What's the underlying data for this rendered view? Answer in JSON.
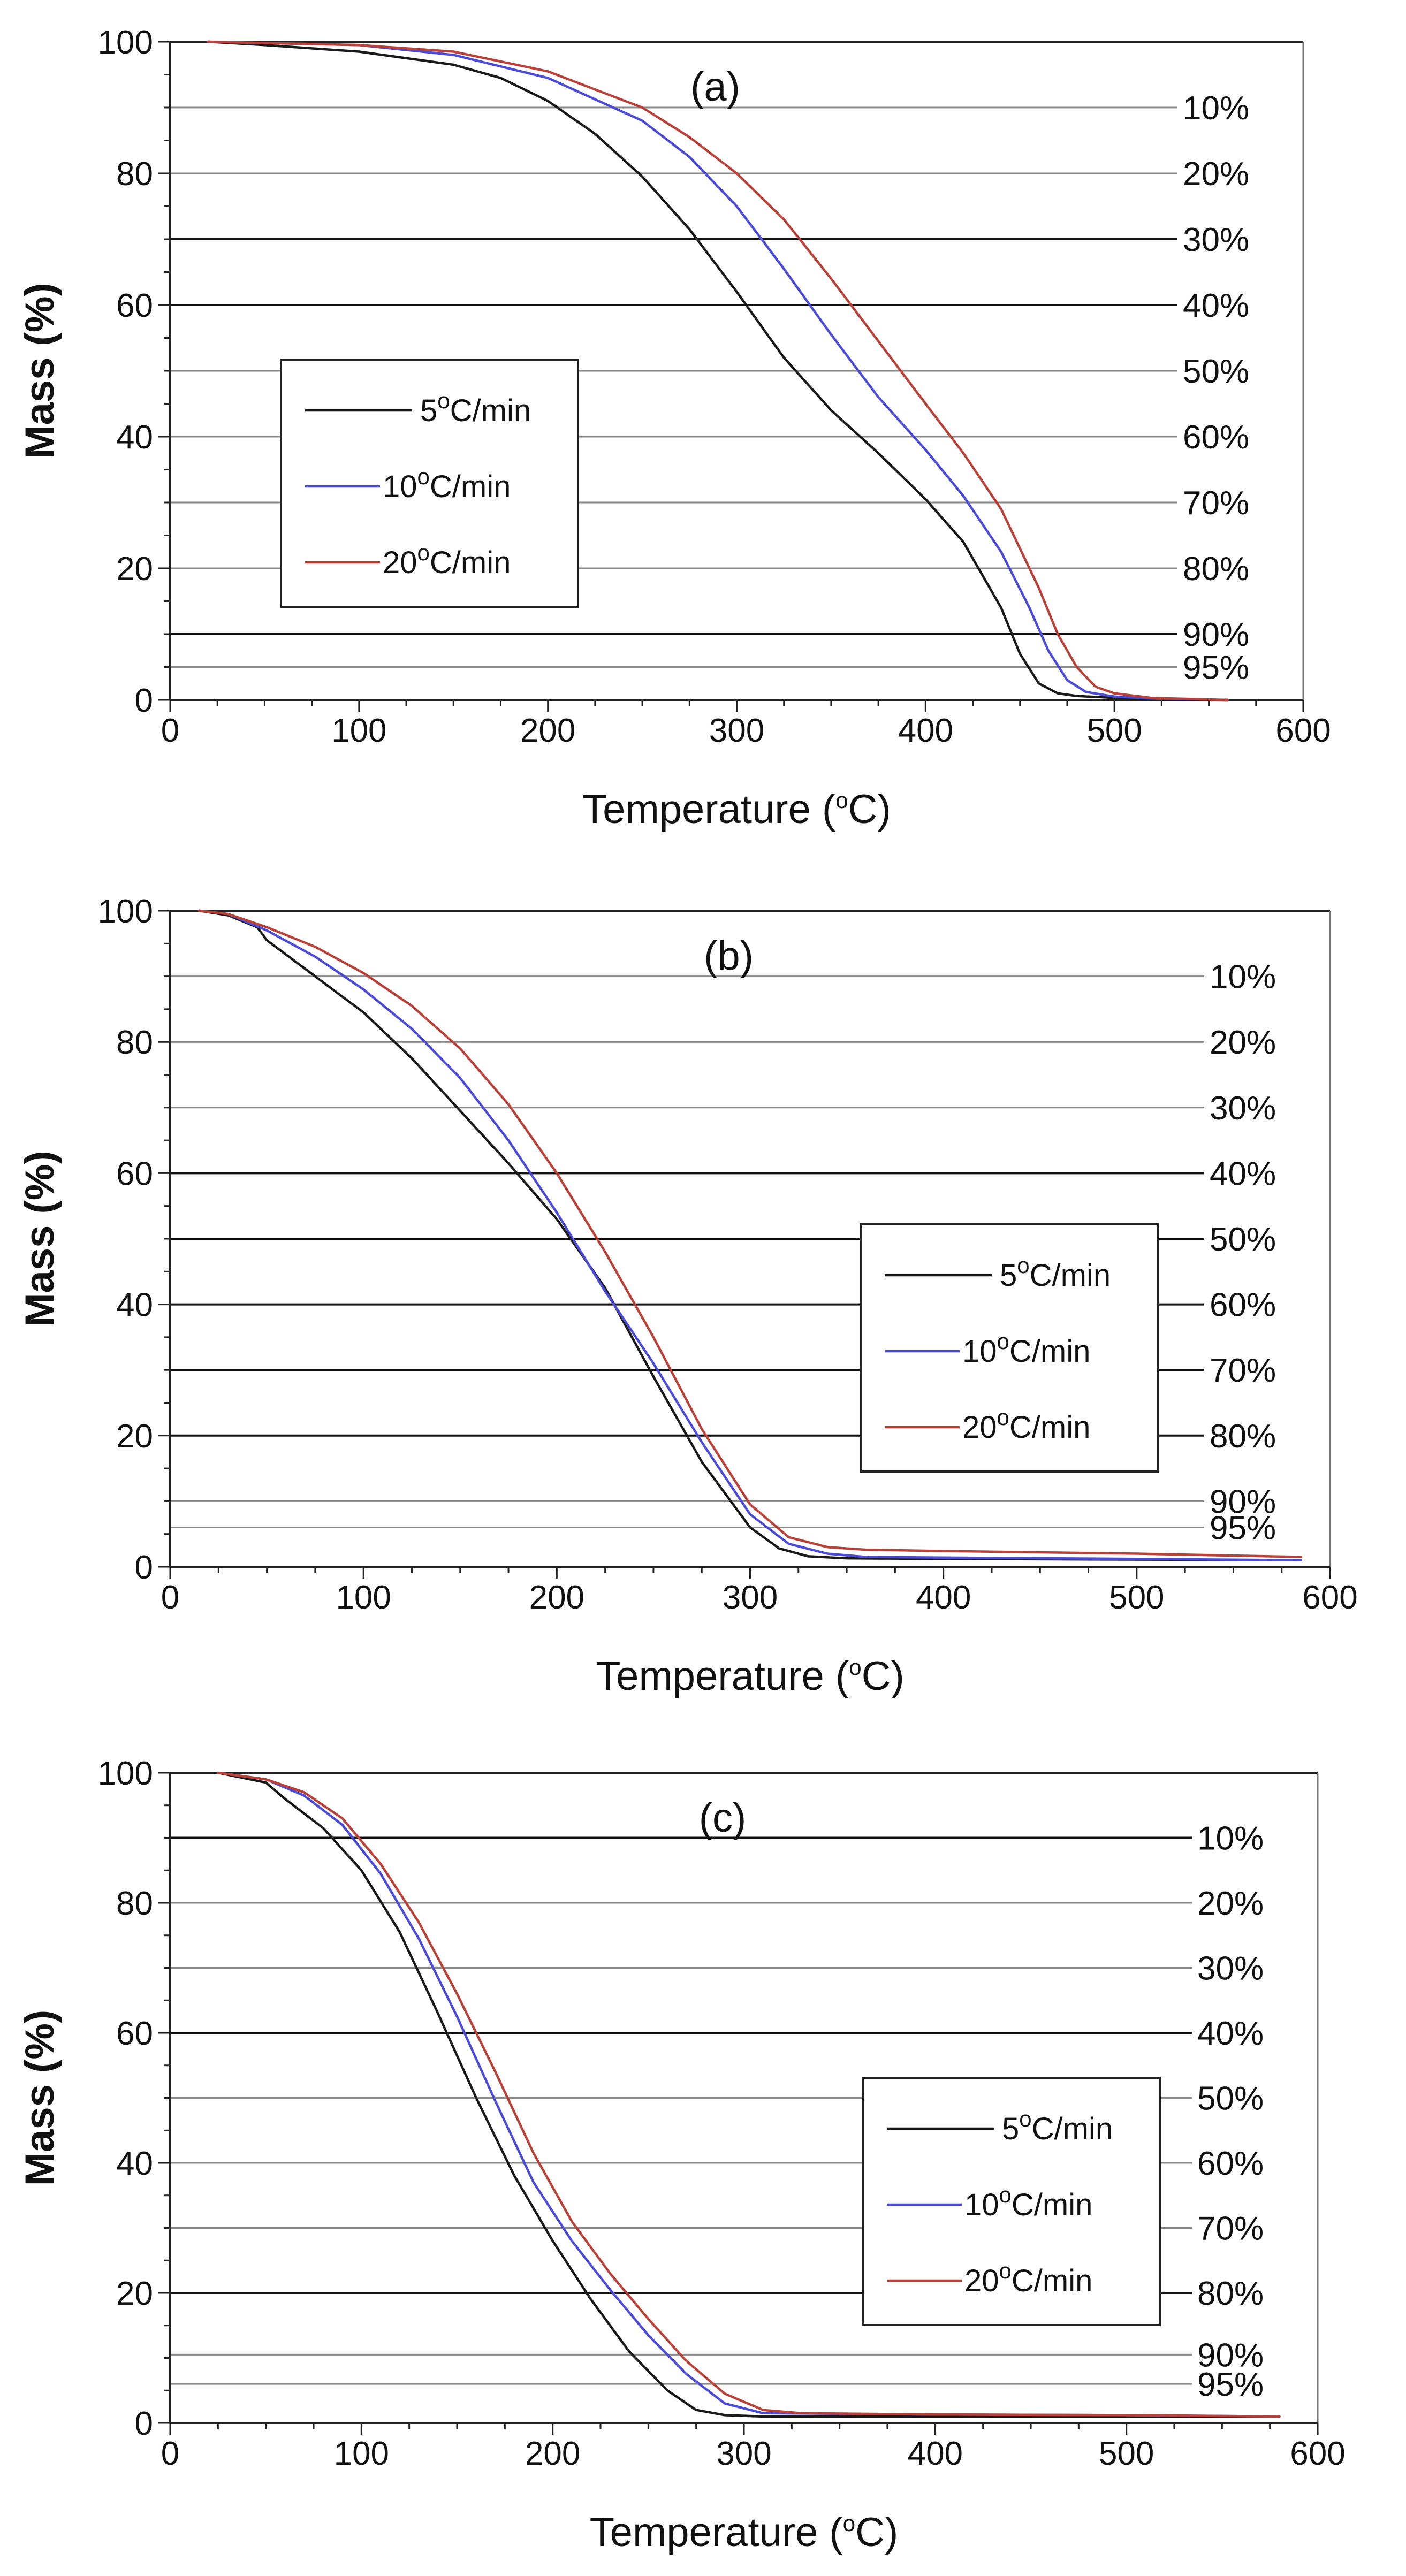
{
  "colors": {
    "series_5": "#1a1a1a",
    "series_10": "#4b4bd6",
    "series_20": "#b8423a",
    "frame": "#222222",
    "grid_light": "#8a8a8a",
    "grid_dark": "#111111"
  },
  "chart_data": [
    {
      "type": "line",
      "title": "(a)",
      "xlabel": "Temperature (oC)",
      "xlabel_main": "Temperature (",
      "xlabel_sup": "o",
      "xlabel_end": "C)",
      "ylabel": "Mass (%)",
      "xlim": [
        0,
        600
      ],
      "ylim": [
        0,
        100
      ],
      "xticks": [
        0,
        100,
        200,
        300,
        400,
        500,
        600
      ],
      "yticks": [
        0,
        20,
        40,
        60,
        80,
        100
      ],
      "legend_position": "center-left",
      "reference_lines": [
        {
          "y": 90,
          "label": "10%",
          "dark": false
        },
        {
          "y": 80,
          "label": "20%",
          "dark": false
        },
        {
          "y": 70,
          "label": "30%",
          "dark": true
        },
        {
          "y": 60,
          "label": "40%",
          "dark": true
        },
        {
          "y": 50,
          "label": "50%",
          "dark": false
        },
        {
          "y": 40,
          "label": "60%",
          "dark": false
        },
        {
          "y": 30,
          "label": "70%",
          "dark": false
        },
        {
          "y": 20,
          "label": "80%",
          "dark": false
        },
        {
          "y": 10,
          "label": "90%",
          "dark": true
        },
        {
          "y": 5,
          "label": "95%",
          "dark": false
        }
      ],
      "series": [
        {
          "name": "5oC/min",
          "name_num": "5",
          "name_sup": "o",
          "name_unit": "C/min",
          "color_key": "series_5",
          "x": [
            20,
            50,
            100,
            150,
            175,
            200,
            225,
            250,
            275,
            300,
            325,
            350,
            375,
            400,
            420,
            440,
            450,
            460,
            470,
            480,
            500,
            520,
            560
          ],
          "y": [
            100,
            99.5,
            98.5,
            96.5,
            94.5,
            91,
            86,
            79.5,
            71.5,
            62,
            52,
            44,
            37.5,
            30.5,
            24,
            14,
            7,
            2.5,
            1,
            0.6,
            0.3,
            0.1,
            0
          ]
        },
        {
          "name": "10oC/min",
          "name_num": "10",
          "name_sup": "o",
          "name_unit": "C/min",
          "color_key": "series_10",
          "x": [
            20,
            50,
            100,
            150,
            200,
            250,
            275,
            300,
            325,
            350,
            375,
            400,
            420,
            440,
            455,
            465,
            475,
            485,
            500,
            520,
            560
          ],
          "y": [
            100,
            99.8,
            99.5,
            98,
            94.5,
            88,
            82.5,
            75,
            65.5,
            55.5,
            46,
            38,
            31,
            22.5,
            14,
            7.5,
            3,
            1.2,
            0.5,
            0.2,
            0
          ]
        },
        {
          "name": "20oC/min",
          "name_num": "20",
          "name_sup": "o",
          "name_unit": "C/min",
          "color_key": "series_20",
          "x": [
            20,
            50,
            100,
            150,
            200,
            250,
            275,
            300,
            325,
            350,
            375,
            400,
            420,
            440,
            460,
            470,
            480,
            490,
            500,
            520,
            560
          ],
          "y": [
            100,
            99.8,
            99.5,
            98.5,
            95.5,
            90,
            85.5,
            80,
            73,
            64,
            54.5,
            45,
            37.5,
            29,
            17,
            10,
            5,
            2,
            1,
            0.3,
            0
          ]
        }
      ]
    },
    {
      "type": "line",
      "title": "(b)",
      "xlabel": "Temperature (oC)",
      "xlabel_main": "Temperature (",
      "xlabel_sup": "o",
      "xlabel_end": "C)",
      "ylabel": "Mass (%)",
      "xlim": [
        0,
        600
      ],
      "ylim": [
        0,
        100
      ],
      "xticks": [
        0,
        100,
        200,
        300,
        400,
        500,
        600
      ],
      "yticks": [
        0,
        20,
        40,
        60,
        80,
        100
      ],
      "legend_position": "center-right",
      "reference_lines": [
        {
          "y": 90,
          "label": "10%",
          "dark": false
        },
        {
          "y": 80,
          "label": "20%",
          "dark": false
        },
        {
          "y": 70,
          "label": "30%",
          "dark": false
        },
        {
          "y": 60,
          "label": "40%",
          "dark": true
        },
        {
          "y": 50,
          "label": "50%",
          "dark": true
        },
        {
          "y": 40,
          "label": "60%",
          "dark": true
        },
        {
          "y": 30,
          "label": "70%",
          "dark": true
        },
        {
          "y": 20,
          "label": "80%",
          "dark": true
        },
        {
          "y": 10,
          "label": "90%",
          "dark": false
        },
        {
          "y": 6,
          "label": "95%",
          "dark": false
        }
      ],
      "series": [
        {
          "name": "5oC/min",
          "name_num": "5",
          "name_sup": "o",
          "name_unit": "C/min",
          "color_key": "series_5",
          "x": [
            15,
            30,
            45,
            50,
            75,
            100,
            125,
            150,
            175,
            200,
            225,
            250,
            275,
            300,
            315,
            330,
            350,
            400,
            500,
            585
          ],
          "y": [
            100,
            99.3,
            97.5,
            95.5,
            90,
            84.5,
            77.5,
            69.5,
            61.5,
            53,
            42.5,
            29,
            16,
            6,
            2.8,
            1.6,
            1.3,
            1.2,
            1.1,
            1
          ]
        },
        {
          "name": "10oC/min",
          "name_num": "10",
          "name_sup": "o",
          "name_unit": "C/min",
          "color_key": "series_10",
          "x": [
            15,
            30,
            50,
            75,
            100,
            125,
            150,
            175,
            200,
            225,
            250,
            275,
            300,
            320,
            340,
            360,
            400,
            500,
            585
          ],
          "y": [
            100,
            99.5,
            97,
            93,
            88,
            82,
            74.5,
            65,
            54,
            42,
            31,
            19,
            8,
            3.5,
            2,
            1.5,
            1.4,
            1.2,
            1
          ]
        },
        {
          "name": "20oC/min",
          "name_num": "20",
          "name_sup": "o",
          "name_unit": "C/min",
          "color_key": "series_20",
          "x": [
            15,
            30,
            50,
            75,
            100,
            125,
            150,
            175,
            200,
            225,
            250,
            275,
            300,
            320,
            340,
            360,
            400,
            500,
            585
          ],
          "y": [
            100,
            99.5,
            97.5,
            94.5,
            90.5,
            85.5,
            79,
            70.5,
            60,
            48,
            35,
            21,
            9.5,
            4.5,
            3,
            2.6,
            2.4,
            2,
            1.5
          ]
        }
      ]
    },
    {
      "type": "line",
      "title": "(c)",
      "xlabel": "Temperature (oC)",
      "xlabel_main": "Temperature (",
      "xlabel_sup": "o",
      "xlabel_end": "C)",
      "ylabel": "Mass (%)",
      "xlim": [
        0,
        600
      ],
      "ylim": [
        0,
        100
      ],
      "xticks": [
        0,
        100,
        200,
        300,
        400,
        500,
        600
      ],
      "yticks": [
        0,
        20,
        40,
        60,
        80,
        100
      ],
      "legend_position": "center-right",
      "reference_lines": [
        {
          "y": 90,
          "label": "10%",
          "dark": true
        },
        {
          "y": 80,
          "label": "20%",
          "dark": false
        },
        {
          "y": 70,
          "label": "30%",
          "dark": false
        },
        {
          "y": 60,
          "label": "40%",
          "dark": true
        },
        {
          "y": 50,
          "label": "50%",
          "dark": false
        },
        {
          "y": 40,
          "label": "60%",
          "dark": false
        },
        {
          "y": 30,
          "label": "70%",
          "dark": false
        },
        {
          "y": 20,
          "label": "80%",
          "dark": true
        },
        {
          "y": 10.5,
          "label": "90%",
          "dark": false
        },
        {
          "y": 6,
          "label": "95%",
          "dark": false
        }
      ],
      "series": [
        {
          "name": "5oC/min",
          "name_num": "5",
          "name_sup": "o",
          "name_unit": "C/min",
          "color_key": "series_5",
          "x": [
            25,
            50,
            60,
            80,
            100,
            120,
            140,
            160,
            180,
            200,
            220,
            240,
            260,
            275,
            290,
            310,
            400,
            500,
            580
          ],
          "y": [
            100,
            98.5,
            96,
            91.5,
            85,
            75.5,
            63,
            50,
            38,
            28,
            19,
            11,
            5,
            2,
            1.2,
            1,
            1,
            1,
            1
          ]
        },
        {
          "name": "10oC/min",
          "name_num": "10",
          "name_sup": "o",
          "name_unit": "C/min",
          "color_key": "series_10",
          "x": [
            25,
            50,
            70,
            90,
            110,
            130,
            150,
            170,
            190,
            210,
            230,
            250,
            270,
            290,
            310,
            400,
            500,
            580
          ],
          "y": [
            100,
            99,
            96.5,
            92,
            84.5,
            74.5,
            62.5,
            49.5,
            37,
            28,
            20.5,
            13.5,
            7.5,
            3,
            1.5,
            1.3,
            1.2,
            1
          ]
        },
        {
          "name": "20oC/min",
          "name_num": "20",
          "name_sup": "o",
          "name_unit": "C/min",
          "color_key": "series_20",
          "x": [
            25,
            50,
            70,
            90,
            110,
            130,
            150,
            170,
            190,
            210,
            230,
            250,
            270,
            290,
            310,
            330,
            400,
            500,
            580
          ],
          "y": [
            100,
            99,
            97,
            93,
            86,
            77,
            66,
            54,
            41.5,
            31,
            23,
            16,
            9.5,
            4.5,
            2,
            1.5,
            1.3,
            1.2,
            1
          ]
        }
      ]
    }
  ]
}
